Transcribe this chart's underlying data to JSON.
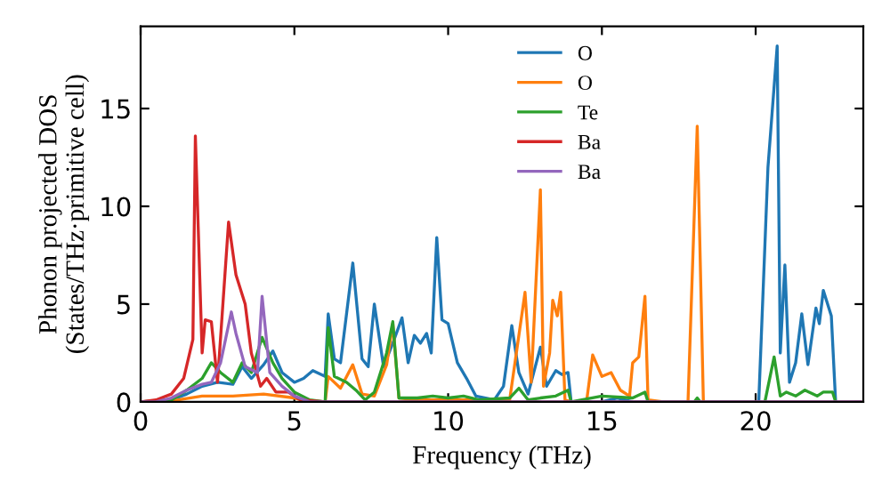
{
  "chart_data": {
    "type": "line",
    "xlabel": "Frequency (THz)",
    "ylabel": "Phonon projected DOS\n(States/THz·primitive cell)",
    "xlim": [
      0,
      23.5
    ],
    "ylim": [
      0,
      19.2
    ],
    "xticks": [
      0,
      5,
      10,
      15,
      20
    ],
    "yticks": [
      0,
      5,
      10,
      15
    ],
    "grid": false,
    "legend": "top",
    "series": [
      {
        "name": "O",
        "color": "#1f77b4",
        "x": [
          0,
          1,
          1.5,
          2,
          2.5,
          3,
          3.3,
          3.6,
          4,
          4.3,
          4.6,
          5,
          5.3,
          5.6,
          6,
          6.1,
          6.3,
          6.5,
          6.9,
          7.2,
          7.4,
          7.6,
          7.9,
          8.2,
          8.5,
          8.7,
          8.9,
          9.1,
          9.3,
          9.45,
          9.63,
          9.8,
          10,
          10.3,
          10.6,
          10.9,
          11.5,
          11.8,
          12.07,
          12.3,
          12.6,
          13.0,
          13.2,
          13.5,
          13.7,
          13.9,
          14.0,
          15,
          15.5,
          16,
          17,
          20.1,
          20.4,
          20.7,
          20.8,
          20.95,
          21.1,
          21.3,
          21.5,
          21.7,
          21.96,
          22.07,
          22.2,
          22.46,
          22.6
        ],
        "values": [
          0,
          0.1,
          0.4,
          0.8,
          1.0,
          0.9,
          1.8,
          1.2,
          1.9,
          2.6,
          1.5,
          1.0,
          1.2,
          1.6,
          1.3,
          4.5,
          2.2,
          2.0,
          7.1,
          2.2,
          1.8,
          5.0,
          1.8,
          3.0,
          4.3,
          2.0,
          3.4,
          3.0,
          3.5,
          2.5,
          8.4,
          4.2,
          4.0,
          2.0,
          1.2,
          0.3,
          0.1,
          0.8,
          3.9,
          1.5,
          0.4,
          2.8,
          0.8,
          1.6,
          1.4,
          1.5,
          0,
          0,
          0.2,
          0,
          0,
          0,
          12,
          18.2,
          2.5,
          7.0,
          1.0,
          2.0,
          4.5,
          1.9,
          4.8,
          4.0,
          5.7,
          4.4,
          0
        ]
      },
      {
        "name": "O",
        "color": "#ff7f0e",
        "x": [
          0,
          1,
          2,
          3,
          4,
          5,
          5.5,
          6,
          6.1,
          6.5,
          6.9,
          7.2,
          7.6,
          8.0,
          8.2,
          8.4,
          9,
          10,
          11,
          12,
          12.5,
          12.7,
          13.0,
          13.1,
          13.3,
          13.4,
          13.55,
          13.66,
          13.8,
          14,
          14.5,
          14.7,
          15.0,
          15.3,
          15.6,
          15.9,
          16.0,
          16.2,
          16.4,
          16.5,
          17,
          17.8,
          18.1,
          18.3,
          18.5
        ],
        "values": [
          0,
          0.05,
          0.3,
          0.3,
          0.4,
          0.2,
          0,
          0,
          1.3,
          0.7,
          1.9,
          0.4,
          0.3,
          1.9,
          4.0,
          0.2,
          0.1,
          0.1,
          0.1,
          0.1,
          5.6,
          1.0,
          10.85,
          0.8,
          2.5,
          5.2,
          4.4,
          5.6,
          0.1,
          0,
          0,
          2.4,
          1.3,
          1.5,
          0.6,
          0.3,
          2.0,
          2.3,
          5.4,
          0.1,
          0,
          0,
          14.1,
          0,
          0
        ]
      },
      {
        "name": "Te",
        "color": "#2ca02c",
        "x": [
          0,
          1,
          1.5,
          2,
          2.3,
          2.6,
          3.0,
          3.3,
          3.6,
          3.95,
          4.3,
          4.6,
          5,
          5.5,
          6,
          6.1,
          6.3,
          6.7,
          7.0,
          7.3,
          7.6,
          8.0,
          8.2,
          8.4,
          9,
          9.5,
          10,
          10.5,
          11,
          12,
          12.3,
          12.6,
          13,
          13.5,
          13.9,
          14.0,
          15,
          16,
          16.4,
          16.5,
          18,
          18.1,
          18.2,
          20.3,
          20.6,
          20.8,
          21.0,
          21.3,
          21.6,
          22,
          22.2,
          22.5,
          22.6
        ],
        "values": [
          0,
          0.1,
          0.6,
          1.2,
          2.0,
          1.5,
          1.0,
          2.0,
          1.5,
          3.3,
          2.0,
          1.2,
          0.5,
          0.1,
          0,
          3.8,
          1.3,
          1.0,
          0.6,
          0.1,
          0.5,
          2.5,
          4.1,
          0.2,
          0.2,
          0.3,
          0.2,
          0.3,
          0.1,
          0.2,
          0.7,
          0.1,
          0.2,
          0.3,
          0.6,
          0,
          0.3,
          0.2,
          0.5,
          0,
          0,
          0.2,
          0,
          0,
          2.3,
          0.3,
          0.5,
          0.3,
          0.6,
          0.3,
          0.5,
          0.5,
          0
        ]
      },
      {
        "name": "Ba",
        "color": "#d62728",
        "x": [
          0,
          0.5,
          1,
          1.4,
          1.7,
          1.78,
          2.0,
          2.1,
          2.3,
          2.5,
          2.86,
          3.1,
          3.4,
          3.6,
          3.9,
          4.1,
          4.4,
          4.8,
          5.2,
          6,
          23.4
        ],
        "values": [
          0,
          0.1,
          0.4,
          1.2,
          3.2,
          13.6,
          2.5,
          4.2,
          4.1,
          1.0,
          9.2,
          6.5,
          5.0,
          2.5,
          0.8,
          1.2,
          0.5,
          0.5,
          0.1,
          0,
          0
        ]
      },
      {
        "name": "Ba",
        "color": "#9467bd",
        "x": [
          0,
          0.5,
          1,
          1.5,
          2,
          2.3,
          2.6,
          2.95,
          3.1,
          3.4,
          3.8,
          3.95,
          4.2,
          4.6,
          5.0,
          5.5,
          6,
          23.4
        ],
        "values": [
          0,
          0,
          0.2,
          0.6,
          0.9,
          1.0,
          2.0,
          4.6,
          3.5,
          1.8,
          1.5,
          5.4,
          1.5,
          0.8,
          0.3,
          0,
          0,
          0
        ]
      }
    ]
  }
}
